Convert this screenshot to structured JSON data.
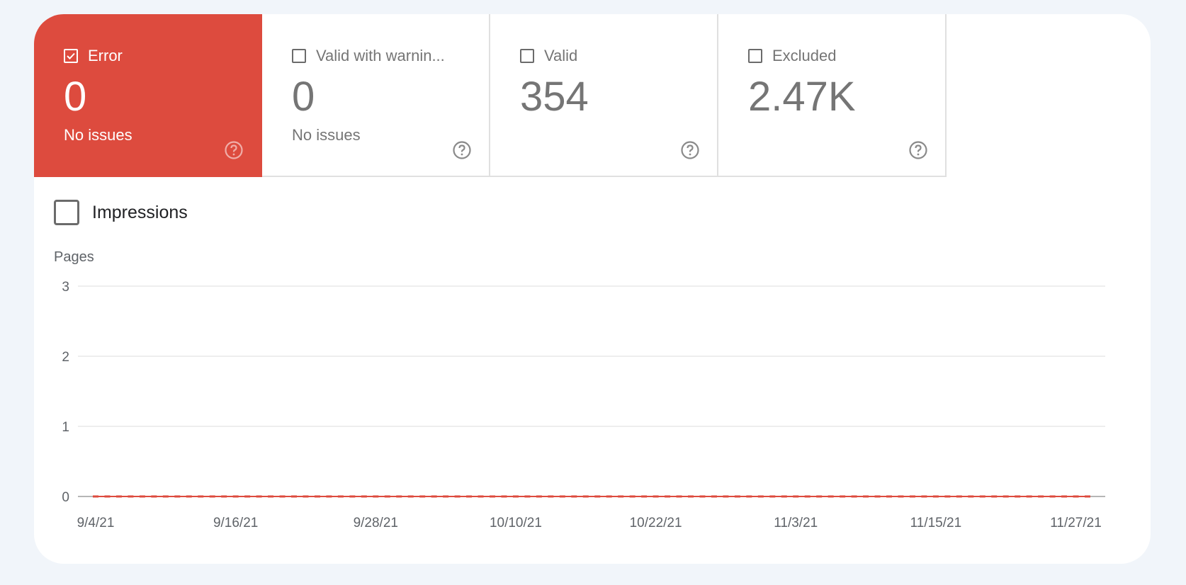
{
  "cards": [
    {
      "label": "Error",
      "value": "0",
      "sub": "No issues",
      "checked": true
    },
    {
      "label": "Valid with warnin...",
      "value": "0",
      "sub": "No issues",
      "checked": false
    },
    {
      "label": "Valid",
      "value": "354",
      "sub": "",
      "checked": false
    },
    {
      "label": "Excluded",
      "value": "2.47K",
      "sub": "",
      "checked": false
    }
  ],
  "impressions": {
    "label": "Impressions",
    "checked": false
  },
  "colors": {
    "error": "#dd4b3e",
    "text_gray": "#757575",
    "background": "#f1f5fa",
    "grid": "#e8e8e8"
  },
  "chart_data": {
    "type": "line",
    "ylabel": "Pages",
    "ylim": [
      0,
      3
    ],
    "yticks": [
      "3",
      "2",
      "1",
      "0"
    ],
    "xticks": [
      "9/4/21",
      "9/16/21",
      "9/28/21",
      "10/10/21",
      "10/22/21",
      "11/3/21",
      "11/15/21",
      "11/27/21"
    ],
    "series": [
      {
        "color": "#dd4b3e",
        "x_start": "9/4/21",
        "x_end": "11/28/21",
        "values": [
          0,
          0,
          0,
          0,
          0,
          0,
          0,
          0,
          0,
          0,
          0,
          0,
          0,
          0,
          0,
          0,
          0,
          0,
          0,
          0,
          0,
          0,
          0,
          0,
          0,
          0,
          0,
          0,
          0,
          0,
          0,
          0,
          0,
          0,
          0,
          0,
          0,
          0,
          0,
          0,
          0,
          0,
          0,
          0,
          0,
          0,
          0,
          0,
          0,
          0,
          0,
          0,
          0,
          0,
          0,
          0,
          0,
          0,
          0,
          0,
          0,
          0,
          0,
          0,
          0,
          0,
          0,
          0,
          0,
          0,
          0,
          0,
          0,
          0,
          0,
          0,
          0,
          0,
          0,
          0,
          0,
          0,
          0,
          0,
          0,
          0
        ]
      }
    ]
  }
}
